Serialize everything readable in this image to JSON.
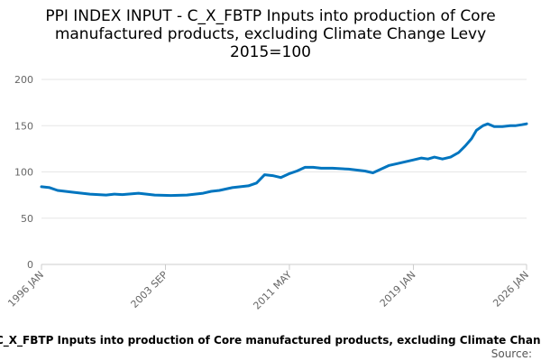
{
  "chart_data": {
    "type": "line",
    "title": [
      "PPI INDEX INPUT - C_X_FBTP Inputs into production of Core",
      "manufactured products, excluding Climate Change Levy",
      "2015=100"
    ],
    "x_tick_labels": [
      "1996 JAN",
      "2003 SEP",
      "2011 MAY",
      "2019 JAN",
      "2026 JAN"
    ],
    "x_tick_years": [
      1996.0,
      2003.667,
      2011.333,
      2019.0,
      2026.0
    ],
    "x_range": [
      1996.0,
      2026.0
    ],
    "y_ticks": [
      0,
      50,
      100,
      150,
      200
    ],
    "ylim": [
      0,
      200
    ],
    "grid": true,
    "legend_label": "C_X_FBTP Inputs into production of Core manufactured products, excluding Climate Change Levy",
    "legend_placement": "bottom",
    "source_label": "Source:",
    "series_color": "#0075bf",
    "series": [
      {
        "x": [
          1996.0,
          1996.5,
          1997.0,
          1998.0,
          1999.0,
          2000.0,
          2000.5,
          2001.0,
          2002.0,
          2003.0,
          2004.0,
          2005.0,
          2006.0,
          2006.5,
          2007.0,
          2007.8,
          2008.3,
          2008.8,
          2009.3,
          2009.8,
          2010.3,
          2010.8,
          2011.3,
          2011.8,
          2012.3,
          2012.8,
          2013.3,
          2014.0,
          2015.0,
          2016.0,
          2016.5,
          2017.0,
          2017.5,
          2018.0,
          2019.0,
          2019.5,
          2019.9,
          2020.3,
          2020.8,
          2021.3,
          2021.8,
          2022.2,
          2022.6,
          2022.9,
          2023.3,
          2023.6,
          2024.0,
          2024.5,
          2025.0,
          2025.3,
          2025.7,
          2026.0
        ],
        "y": [
          84,
          83,
          80,
          78,
          76,
          75,
          76,
          75.5,
          77,
          75,
          74.5,
          75,
          77,
          79,
          80,
          83,
          84,
          85,
          88,
          97,
          96,
          94,
          98,
          101,
          105,
          105,
          104,
          104,
          103,
          101,
          99,
          103,
          107,
          109,
          113,
          115,
          114,
          116,
          114,
          116,
          121,
          128,
          136,
          145,
          150,
          152,
          149,
          149,
          150,
          150,
          151,
          152
        ]
      }
    ]
  }
}
